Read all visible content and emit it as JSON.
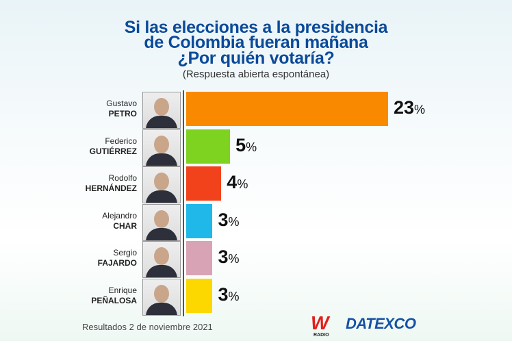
{
  "chart_data": {
    "type": "bar",
    "orientation": "horizontal",
    "title": [
      "Si las elecciones a la presidencia",
      "de Colombia fueran mañana",
      "¿Por quién votaría?"
    ],
    "subtitle": "(Respuesta abierta espontánea)",
    "categories": [
      {
        "first": "Gustavo",
        "last": "PETRO"
      },
      {
        "first": "Federico",
        "last": "GUTIÉRREZ"
      },
      {
        "first": "Rodolfo",
        "last": "HERNÁNDEZ"
      },
      {
        "first": "Alejandro",
        "last": "CHAR"
      },
      {
        "first": "Sergio",
        "last": "FAJARDO"
      },
      {
        "first": "Enrique",
        "last": "PEÑALOSA"
      }
    ],
    "values": [
      23,
      5,
      4,
      3,
      3,
      3
    ],
    "unit": "%",
    "colors": [
      "#f98a00",
      "#7ed321",
      "#f2421c",
      "#1fb8e8",
      "#d9a3b6",
      "#fcd800"
    ],
    "xlim": [
      0,
      23
    ]
  },
  "footer": "Resultados 2 de noviembre 2021",
  "logos": {
    "w_radio": "W",
    "w_radio_sub": "RADIO",
    "datexco": "DATEXCO"
  }
}
